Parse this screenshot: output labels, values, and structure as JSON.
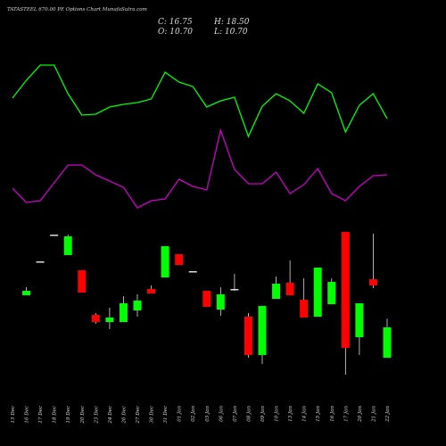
{
  "chart_data": {
    "type": "candlestick",
    "title": "TATASTEEL 670.00 PE Options Chart MunafaSutra.com",
    "ohlc_labels": {
      "close": "C: 16.75",
      "high": "H: 18.50",
      "open": "O: 10.70",
      "low": "L: 10.70"
    },
    "categories": [
      "13 Dec",
      "16 Dec",
      "17 Dec",
      "18 Dec",
      "19 Dec",
      "20 Dec",
      "23 Dec",
      "24 Dec",
      "26 Dec",
      "27 Dec",
      "30 Dec",
      "31 Dec",
      "01 Jan",
      "02 Jan",
      "03 Jan",
      "06 Jan",
      "07 Jan",
      "08 Jan",
      "09 Jan",
      "10 Jan",
      "13 Jan",
      "14 Jan",
      "15 Jan",
      "16 Jan",
      "17 Jan",
      "20 Jan",
      "21 Jan",
      "22 Jan"
    ],
    "open": [
      null,
      23.16,
      29.92,
      35.26,
      31.17,
      28.14,
      19.24,
      17.82,
      17.82,
      20.13,
      24.41,
      26.72,
      31.35,
      27.97,
      24.05,
      20.31,
      24.41,
      18.89,
      11.23,
      22.45,
      25.65,
      22.27,
      18.89,
      21.38,
      35.8,
      14.79,
      26.36,
      10.7
    ],
    "high": [
      null,
      24.76,
      29.92,
      35.26,
      35.26,
      28.14,
      19.6,
      20.67,
      22.98,
      23.34,
      25.12,
      32.95,
      31.35,
      27.97,
      24.05,
      24.76,
      27.43,
      19.6,
      21.02,
      26.9,
      30.1,
      26.54,
      28.68,
      26.54,
      35.8,
      21.56,
      35.44,
      18.5
    ],
    "low": [
      null,
      23.16,
      29.92,
      35.26,
      31.17,
      23.69,
      17.46,
      16.4,
      17.82,
      18.89,
      23.52,
      26.72,
      29.21,
      27.97,
      20.85,
      19.07,
      24.05,
      10.7,
      9.45,
      22.45,
      23.16,
      18.71,
      18.89,
      21.38,
      7.32,
      11.23,
      24.58,
      10.7
    ],
    "close": [
      null,
      24.05,
      29.92,
      35.26,
      34.91,
      23.69,
      17.82,
      18.71,
      21.56,
      22.09,
      23.52,
      32.95,
      29.21,
      27.97,
      20.85,
      23.34,
      24.41,
      11.23,
      21.02,
      25.47,
      23.16,
      18.71,
      28.68,
      25.83,
      12.66,
      21.56,
      25.12,
      16.75
    ],
    "up_color": "#00ff00",
    "down_color": "#ff0000",
    "series": [
      {
        "color": "#00ff00",
        "values": [
          390,
          410,
          427,
          427,
          395,
          371,
          372,
          380,
          383,
          385,
          389,
          419,
          408,
          403,
          380,
          387,
          391,
          347,
          381,
          395,
          387,
          373,
          406,
          396,
          352,
          382,
          395,
          367
        ]
      },
      {
        "color": "#cc00cc",
        "values": [
          289,
          273,
          275,
          295,
          315,
          315,
          304,
          297,
          290,
          267,
          275,
          277,
          299,
          291,
          287,
          354,
          310,
          294,
          294,
          307,
          283,
          293,
          311,
          283,
          275,
          291,
          303,
          304
        ]
      }
    ]
  }
}
